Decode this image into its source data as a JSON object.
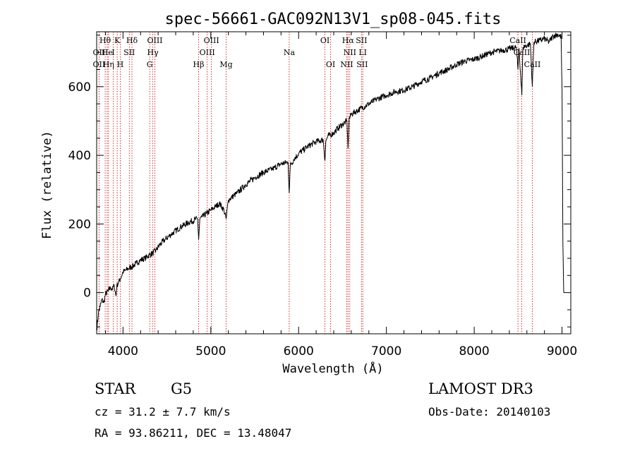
{
  "chart_data": {
    "type": "line",
    "title": "spec-56661-GAC092N13V1_sp08-045.fits",
    "xlabel": "Wavelength (Å)",
    "ylabel": "Flux (relative)",
    "xlim": [
      3700,
      9100
    ],
    "ylim": [
      -120,
      760
    ],
    "x_ticks": [
      4000,
      5000,
      6000,
      7000,
      8000,
      9000
    ],
    "x_tick_labels": [
      "4000",
      "5000",
      "6000",
      "7000",
      "8000",
      "9000"
    ],
    "y_ticks": [
      0,
      200,
      400,
      600
    ],
    "y_tick_labels": [
      "0",
      "200",
      "400",
      "600"
    ],
    "series": [
      {
        "name": "flux",
        "x": [
          3700,
          3720,
          3740,
          3760,
          3780,
          3800,
          3830,
          3860,
          3880,
          3900,
          3920,
          3930,
          3950,
          3970,
          4000,
          4030,
          4060,
          4100,
          4150,
          4200,
          4250,
          4300,
          4340,
          4380,
          4420,
          4480,
          4550,
          4650,
          4750,
          4850,
          4862,
          4875,
          4900,
          4950,
          5000,
          5050,
          5100,
          5150,
          5175,
          5200,
          5300,
          5400,
          5500,
          5600,
          5700,
          5800,
          5880,
          5893,
          5905,
          5950,
          6000,
          6100,
          6200,
          6280,
          6300,
          6310,
          6330,
          6400,
          6450,
          6500,
          6550,
          6563,
          6575,
          6600,
          6700,
          6800,
          6900,
          7000,
          7100,
          7200,
          7300,
          7400,
          7500,
          7600,
          7700,
          7800,
          7900,
          8000,
          8100,
          8200,
          8300,
          8400,
          8480,
          8498,
          8510,
          8542,
          8555,
          8600,
          8640,
          8662,
          8680,
          8750,
          8800,
          8850,
          8900,
          8950,
          8990,
          9000,
          9010,
          9020
        ],
        "values": [
          -110,
          -60,
          -40,
          -20,
          -30,
          -5,
          5,
          15,
          10,
          20,
          -10,
          20,
          30,
          40,
          60,
          65,
          70,
          75,
          85,
          95,
          100,
          110,
          115,
          125,
          140,
          155,
          170,
          190,
          205,
          215,
          155,
          215,
          220,
          230,
          240,
          250,
          260,
          240,
          215,
          270,
          290,
          315,
          335,
          350,
          360,
          375,
          380,
          290,
          370,
          390,
          405,
          425,
          440,
          445,
          385,
          440,
          455,
          465,
          480,
          490,
          500,
          420,
          505,
          520,
          535,
          550,
          565,
          575,
          585,
          590,
          600,
          615,
          625,
          640,
          650,
          665,
          675,
          680,
          690,
          700,
          705,
          710,
          715,
          650,
          712,
          575,
          715,
          720,
          725,
          600,
          730,
          735,
          740,
          730,
          748,
          752,
          745,
          590,
          140,
          0
        ]
      }
    ],
    "line_labels": {
      "top": [
        {
          "label": "Hθ",
          "x": 3797
        },
        {
          "label": "K",
          "x": 3934
        },
        {
          "label": "Hδ",
          "x": 4102
        },
        {
          "label": "OIII",
          "x": 4363
        },
        {
          "label": "OIII",
          "x": 5007
        },
        {
          "label": "OI",
          "x": 6300
        },
        {
          "label": "Hα",
          "x": 6563
        },
        {
          "label": "SII",
          "x": 6716
        },
        {
          "label": "CaII",
          "x": 8498
        }
      ],
      "middle": [
        {
          "label": "OII",
          "x": 3727
        },
        {
          "label": "He",
          "x": 3820
        },
        {
          "label": "I",
          "x": 3889
        },
        {
          "label": "SII",
          "x": 4072
        },
        {
          "label": "Hγ",
          "x": 4340
        },
        {
          "label": "OIII",
          "x": 4959
        },
        {
          "label": "Na",
          "x": 5893
        },
        {
          "label": "NII",
          "x": 6583
        },
        {
          "label": "LI",
          "x": 6731
        },
        {
          "label": "CaII",
          "x": 8542
        }
      ],
      "bottom": [
        {
          "label": "OII",
          "x": 3727
        },
        {
          "label": "Hη",
          "x": 3835
        },
        {
          "label": "H",
          "x": 3969
        },
        {
          "label": "G",
          "x": 4304
        },
        {
          "label": "Hβ",
          "x": 4861
        },
        {
          "label": "Mg",
          "x": 5175
        },
        {
          "label": "OI",
          "x": 6364
        },
        {
          "label": "NII",
          "x": 6548
        },
        {
          "label": "SII",
          "x": 6724
        },
        {
          "label": "CaII",
          "x": 8662
        }
      ]
    },
    "reference_lines": [
      3727,
      3797,
      3820,
      3835,
      3889,
      3934,
      3969,
      4072,
      4102,
      4304,
      4340,
      4363,
      4861,
      4959,
      5007,
      5175,
      5893,
      6300,
      6364,
      6548,
      6563,
      6583,
      6716,
      6731,
      8498,
      8542,
      8662
    ],
    "grid": false
  },
  "info": {
    "object_type": "STAR",
    "spectral_class": "G5",
    "survey": "LAMOST DR3",
    "cz": "cz = 31.2 ± 7.7 km/s",
    "obs_date": "Obs-Date: 20140103",
    "coords": "RA =  93.86211, DEC =  13.48047"
  },
  "colors": {
    "line": "#000000",
    "reference": "#cc0000",
    "axes": "#000000"
  }
}
